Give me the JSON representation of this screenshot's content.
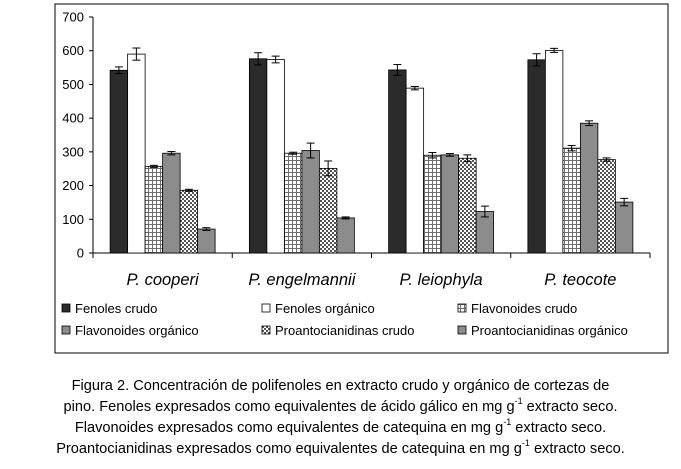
{
  "chart_data": {
    "type": "bar",
    "categories": [
      "P. cooperi",
      "P. engelmannii",
      "P. leiophyla",
      "P. teocote"
    ],
    "ylim": [
      0,
      700
    ],
    "yticks": [
      0,
      100,
      200,
      300,
      400,
      500,
      600,
      700
    ],
    "grid": false,
    "legend_position": "bottom",
    "series": [
      {
        "name": "Fenoles crudo",
        "pattern": "solid-dark",
        "values": [
          542,
          576,
          543,
          573
        ],
        "errors": [
          10,
          18,
          16,
          18
        ]
      },
      {
        "name": "Fenoles orgánico",
        "pattern": "white",
        "values": [
          590,
          574,
          489,
          601
        ],
        "errors": [
          18,
          10,
          5,
          6
        ]
      },
      {
        "name": "Flavonoides crudo",
        "pattern": "grid",
        "values": [
          257,
          296,
          290,
          311
        ],
        "errors": [
          3,
          3,
          8,
          8
        ]
      },
      {
        "name": "Flavonoides orgánico",
        "pattern": "solid-mid",
        "values": [
          296,
          304,
          291,
          385
        ],
        "errors": [
          5,
          22,
          4,
          7
        ]
      },
      {
        "name": "Proantocianidinas crudo",
        "pattern": "checker",
        "values": [
          186,
          251,
          281,
          277
        ],
        "errors": [
          3,
          22,
          10,
          5
        ]
      },
      {
        "name": "Proantocianidinas orgánico",
        "pattern": "solid-mid",
        "values": [
          71,
          104,
          123,
          151
        ],
        "errors": [
          4,
          3,
          16,
          11
        ]
      }
    ],
    "colors": {
      "dark": "#2b2b2b",
      "mid": "#8c8c8c",
      "light": "#ffffff",
      "outline": "#000000"
    }
  },
  "caption": {
    "part1": "Figura 2. Concentración de polifenoles en extracto crudo y orgánico de cortezas de",
    "part2a": "pino. Fenoles expresados como equivalentes de ácido gálico en mg g",
    "part2sup": "-1",
    "part2b": " extracto seco.",
    "part3a": "Flavonoides expresados como equivalentes de catequina en mg g",
    "part3sup": "-1",
    "part3b": " extracto seco.",
    "part4a": "Proantocianidinas expresados como equivalentes de catequina en mg g",
    "part4sup": "-1",
    "part4b": " extracto seco."
  }
}
